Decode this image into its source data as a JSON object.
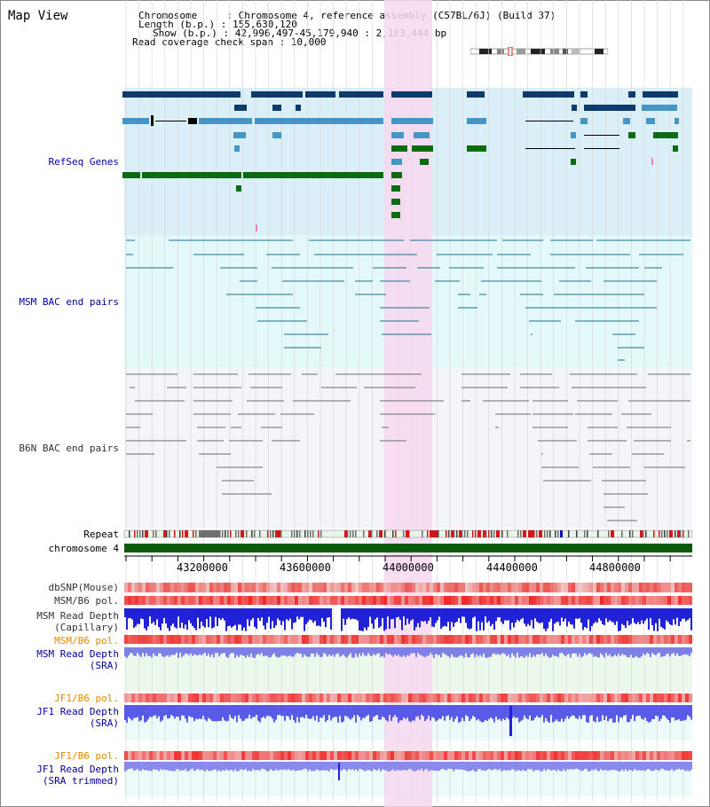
{
  "title": "Map View",
  "info": {
    "chromosome_label": "Chromosome     : ",
    "chromosome_value": "Chromosome 4, reference assembly (C57BL/6J) (Build 37)",
    "length_label": "Length (b.p.) : ",
    "length_value": "155,630,120",
    "show_label": "Show (b.p.) : ",
    "show_value": "42,996,497-45,179,940 : 2,183,444 bp",
    "span_label": "Read coverage check span : ",
    "span_value": "10,000"
  },
  "tracks": {
    "refseq": "RefSeq Genes",
    "msm_bac": "MSM BAC end pairs",
    "b6n_bac": "B6N BAC end pairs",
    "repeat": "Repeat",
    "chromosome": "chromosome 4",
    "dbsnp": "dbSNP(Mouse)",
    "msm_b6_pol_1": "MSM/B6 pol.",
    "msm_depth_cap_1": "MSM Read Depth",
    "msm_depth_cap_2": "(Capillary)",
    "msm_b6_pol_2": "MSM/B6 pol.",
    "msm_depth_sra_1": "MSM Read Depth",
    "msm_depth_sra_2": "(SRA)",
    "jf1_b6_pol_1": "JF1/B6 pol.",
    "jf1_depth_1": "JF1 Read Depth",
    "jf1_depth_2": "(SRA)",
    "jf1_b6_pol_2": "JF1/B6 pol.",
    "jf1_trim_1": "JF1 Read Depth",
    "jf1_trim_2": "(SRA trimmed)"
  },
  "axis": {
    "ticks": [
      "43200000",
      "43600000",
      "44000000",
      "44400000",
      "44800000"
    ]
  },
  "colors": {
    "refseq_bg": "#dbeff8",
    "msm_bg": "#e3f8f8",
    "b6n_bg": "#f2f4f8",
    "highlight": "#f7d8ef",
    "dark_navy": "#0e3a6e",
    "light_blue": "#4596c5",
    "green": "#0a6b10",
    "teal": "#1c6f8a",
    "gray": "#6a6a6a",
    "chrom": "#0a5a0a",
    "depth_blue": "#2121d8",
    "depth_light": "#7f7fe8",
    "orange_label": "#e08a00",
    "blue_label": "#0000a0"
  }
}
